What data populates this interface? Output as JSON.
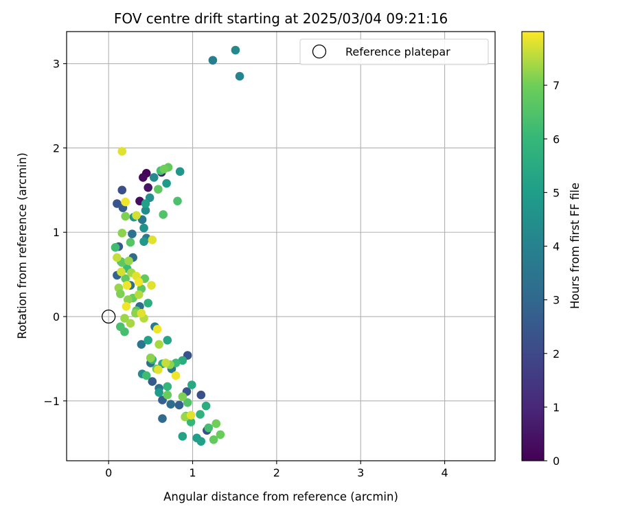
{
  "chart_data": {
    "type": "scatter",
    "title": "FOV centre drift starting at 2025/03/04 09:21:16",
    "xlabel": "Angular distance from reference (arcmin)",
    "ylabel": "Rotation from reference (arcmin)",
    "xlim": [
      -0.5,
      4.6
    ],
    "ylim": [
      -1.71,
      3.38
    ],
    "xticks": [
      0,
      1,
      2,
      3,
      4
    ],
    "xtick_labels": [
      "0",
      "1",
      "2",
      "3",
      "4"
    ],
    "yticks": [
      -1,
      0,
      1,
      2,
      3
    ],
    "ytick_labels": [
      "−1",
      "0",
      "1",
      "2",
      "3"
    ],
    "grid": true,
    "legend": {
      "placement": "top-right",
      "entries": [
        {
          "label": "Reference platepar",
          "marker": "open-circle"
        }
      ]
    },
    "reference_point": {
      "x": 0,
      "y": 0
    },
    "colorbar": {
      "label": "Hours from first FF file",
      "min": 0,
      "max": 8,
      "ticks": [
        0,
        1,
        2,
        3,
        4,
        5,
        6,
        7
      ],
      "colormap": "viridis"
    },
    "points": [
      {
        "x": 0.45,
        "y": 1.7,
        "c": 0.1
      },
      {
        "x": 0.41,
        "y": 1.65,
        "c": 0.2
      },
      {
        "x": 0.37,
        "y": 1.37,
        "c": 0.3
      },
      {
        "x": 0.47,
        "y": 1.53,
        "c": 0.5
      },
      {
        "x": 0.63,
        "y": 1.71,
        "c": 0.8
      },
      {
        "x": 0.16,
        "y": 1.5,
        "c": 2.2
      },
      {
        "x": 0.1,
        "y": 1.34,
        "c": 2.4
      },
      {
        "x": 0.17,
        "y": 1.29,
        "c": 2.6
      },
      {
        "x": 0.1,
        "y": 0.49,
        "c": 2.8
      },
      {
        "x": 0.12,
        "y": 0.83,
        "c": 2.5
      },
      {
        "x": 0.94,
        "y": -0.46,
        "c": 2.3
      },
      {
        "x": 1.1,
        "y": -0.93,
        "c": 2.2
      },
      {
        "x": 0.93,
        "y": -0.89,
        "c": 2.4
      },
      {
        "x": 1.17,
        "y": -1.35,
        "c": 2.1
      },
      {
        "x": 0.52,
        "y": -0.77,
        "c": 2.6
      },
      {
        "x": 0.64,
        "y": -0.99,
        "c": 2.7
      },
      {
        "x": 0.84,
        "y": -1.05,
        "c": 2.8
      },
      {
        "x": 0.64,
        "y": -1.21,
        "c": 3.1
      },
      {
        "x": 0.74,
        "y": -1.04,
        "c": 3.2
      },
      {
        "x": 0.5,
        "y": -0.55,
        "c": 3.3
      },
      {
        "x": 0.37,
        "y": 0.12,
        "c": 3.2
      },
      {
        "x": 0.28,
        "y": 0.98,
        "c": 3.4
      },
      {
        "x": 0.29,
        "y": 0.7,
        "c": 3.1
      },
      {
        "x": 0.26,
        "y": 0.37,
        "c": 3.3
      },
      {
        "x": 0.39,
        "y": -0.33,
        "c": 3.5
      },
      {
        "x": 0.4,
        "y": 1.15,
        "c": 3.6
      },
      {
        "x": 0.45,
        "y": 0.93,
        "c": 3.7
      },
      {
        "x": 0.55,
        "y": -0.12,
        "c": 3.6
      },
      {
        "x": 0.6,
        "y": -0.85,
        "c": 3.4
      },
      {
        "x": 0.75,
        "y": -0.62,
        "c": 3.5
      },
      {
        "x": 1.24,
        "y": 3.04,
        "c": 3.9
      },
      {
        "x": 1.51,
        "y": 3.16,
        "c": 4.2
      },
      {
        "x": 1.56,
        "y": 2.85,
        "c": 4.1
      },
      {
        "x": 0.54,
        "y": 1.65,
        "c": 4.3
      },
      {
        "x": 0.44,
        "y": 1.26,
        "c": 4.4
      },
      {
        "x": 0.42,
        "y": 1.05,
        "c": 4.6
      },
      {
        "x": 0.49,
        "y": 1.41,
        "c": 4.5
      },
      {
        "x": 0.4,
        "y": -0.68,
        "c": 4.4
      },
      {
        "x": 0.42,
        "y": 0.89,
        "c": 4.8
      },
      {
        "x": 0.69,
        "y": 1.58,
        "c": 4.9
      },
      {
        "x": 0.85,
        "y": 1.72,
        "c": 4.7
      },
      {
        "x": 0.44,
        "y": 1.34,
        "c": 5.1
      },
      {
        "x": 0.3,
        "y": 1.18,
        "c": 4.7
      },
      {
        "x": 0.47,
        "y": -0.28,
        "c": 5.2
      },
      {
        "x": 0.7,
        "y": -0.28,
        "c": 5.3
      },
      {
        "x": 0.6,
        "y": -0.9,
        "c": 4.9
      },
      {
        "x": 0.88,
        "y": -1.42,
        "c": 5.2
      },
      {
        "x": 1.05,
        "y": -1.44,
        "c": 5.0
      },
      {
        "x": 1.1,
        "y": -1.48,
        "c": 5.1
      },
      {
        "x": 0.99,
        "y": -0.81,
        "c": 5.4
      },
      {
        "x": 1.16,
        "y": -1.06,
        "c": 5.6
      },
      {
        "x": 1.09,
        "y": -1.16,
        "c": 5.8
      },
      {
        "x": 0.7,
        "y": -0.83,
        "c": 5.9
      },
      {
        "x": 0.47,
        "y": 0.16,
        "c": 5.7
      },
      {
        "x": 0.64,
        "y": -0.56,
        "c": 5.5
      },
      {
        "x": 0.88,
        "y": -0.52,
        "c": 5.6
      },
      {
        "x": 0.52,
        "y": -0.51,
        "c": 6.0
      },
      {
        "x": 0.08,
        "y": 0.82,
        "c": 6.2
      },
      {
        "x": 0.62,
        "y": 1.73,
        "c": 6.3
      },
      {
        "x": 0.82,
        "y": 1.37,
        "c": 6.4
      },
      {
        "x": 0.65,
        "y": 1.21,
        "c": 6.5
      },
      {
        "x": 0.22,
        "y": 0.57,
        "c": 6.1
      },
      {
        "x": 0.15,
        "y": 0.65,
        "c": 6.0
      },
      {
        "x": 0.19,
        "y": -0.18,
        "c": 6.3
      },
      {
        "x": 0.14,
        "y": -0.12,
        "c": 6.4
      },
      {
        "x": 0.45,
        "y": -0.7,
        "c": 6.2
      },
      {
        "x": 0.8,
        "y": -0.55,
        "c": 6.1
      },
      {
        "x": 0.98,
        "y": -1.25,
        "c": 6.0
      },
      {
        "x": 1.19,
        "y": -1.32,
        "c": 6.3
      },
      {
        "x": 0.94,
        "y": -1.02,
        "c": 6.5
      },
      {
        "x": 0.59,
        "y": 1.51,
        "c": 6.7
      },
      {
        "x": 0.71,
        "y": 1.77,
        "c": 6.8
      },
      {
        "x": 0.26,
        "y": 0.88,
        "c": 6.6
      },
      {
        "x": 0.16,
        "y": 0.64,
        "c": 6.7
      },
      {
        "x": 0.2,
        "y": 0.45,
        "c": 6.8
      },
      {
        "x": 0.29,
        "y": 0.22,
        "c": 6.9
      },
      {
        "x": 0.33,
        "y": 0.07,
        "c": 6.6
      },
      {
        "x": 0.39,
        "y": 0.33,
        "c": 6.7
      },
      {
        "x": 0.43,
        "y": 0.45,
        "c": 6.8
      },
      {
        "x": 0.5,
        "y": -0.49,
        "c": 6.9
      },
      {
        "x": 0.57,
        "y": -0.62,
        "c": 6.8
      },
      {
        "x": 0.7,
        "y": -0.93,
        "c": 6.9
      },
      {
        "x": 0.92,
        "y": -1.18,
        "c": 6.7
      },
      {
        "x": 1.25,
        "y": -1.46,
        "c": 6.8
      },
      {
        "x": 1.33,
        "y": -1.4,
        "c": 6.9
      },
      {
        "x": 1.28,
        "y": -1.27,
        "c": 7.0
      },
      {
        "x": 0.88,
        "y": -0.95,
        "c": 7.1
      },
      {
        "x": 0.73,
        "y": -0.57,
        "c": 7.2
      },
      {
        "x": 0.66,
        "y": 1.75,
        "c": 7.0
      },
      {
        "x": 0.2,
        "y": 1.19,
        "c": 7.1
      },
      {
        "x": 0.16,
        "y": 0.99,
        "c": 7.2
      },
      {
        "x": 0.12,
        "y": 0.34,
        "c": 7.3
      },
      {
        "x": 0.14,
        "y": 0.27,
        "c": 7.1
      },
      {
        "x": 0.23,
        "y": 0.2,
        "c": 7.2
      },
      {
        "x": 0.24,
        "y": 0.66,
        "c": 7.3
      },
      {
        "x": 0.27,
        "y": 0.52,
        "c": 7.4
      },
      {
        "x": 0.36,
        "y": 0.26,
        "c": 7.5
      },
      {
        "x": 0.32,
        "y": 0.04,
        "c": 7.2
      },
      {
        "x": 0.19,
        "y": -0.02,
        "c": 7.3
      },
      {
        "x": 0.26,
        "y": -0.08,
        "c": 7.4
      },
      {
        "x": 0.42,
        "y": -0.02,
        "c": 7.5
      },
      {
        "x": 0.5,
        "y": -0.49,
        "c": 7.2
      },
      {
        "x": 0.6,
        "y": -0.33,
        "c": 7.4
      },
      {
        "x": 0.68,
        "y": -0.55,
        "c": 7.6
      },
      {
        "x": 0.91,
        "y": -1.19,
        "c": 7.3
      },
      {
        "x": 0.16,
        "y": 1.96,
        "c": 7.8
      },
      {
        "x": 0.2,
        "y": 1.36,
        "c": 7.9
      },
      {
        "x": 0.33,
        "y": 1.2,
        "c": 7.7
      },
      {
        "x": 0.52,
        "y": 0.91,
        "c": 7.8
      },
      {
        "x": 0.1,
        "y": 0.7,
        "c": 7.6
      },
      {
        "x": 0.15,
        "y": 0.53,
        "c": 7.7
      },
      {
        "x": 0.22,
        "y": 0.37,
        "c": 7.9
      },
      {
        "x": 0.33,
        "y": 0.48,
        "c": 7.8
      },
      {
        "x": 0.36,
        "y": 0.41,
        "c": 7.9
      },
      {
        "x": 0.51,
        "y": 0.37,
        "c": 7.8
      },
      {
        "x": 0.21,
        "y": 0.12,
        "c": 7.9
      },
      {
        "x": 0.39,
        "y": 0.04,
        "c": 7.8
      },
      {
        "x": 0.58,
        "y": -0.15,
        "c": 7.9
      },
      {
        "x": 0.59,
        "y": -0.63,
        "c": 7.8
      },
      {
        "x": 0.8,
        "y": -0.7,
        "c": 7.9
      },
      {
        "x": 0.98,
        "y": -1.17,
        "c": 7.8
      }
    ]
  }
}
